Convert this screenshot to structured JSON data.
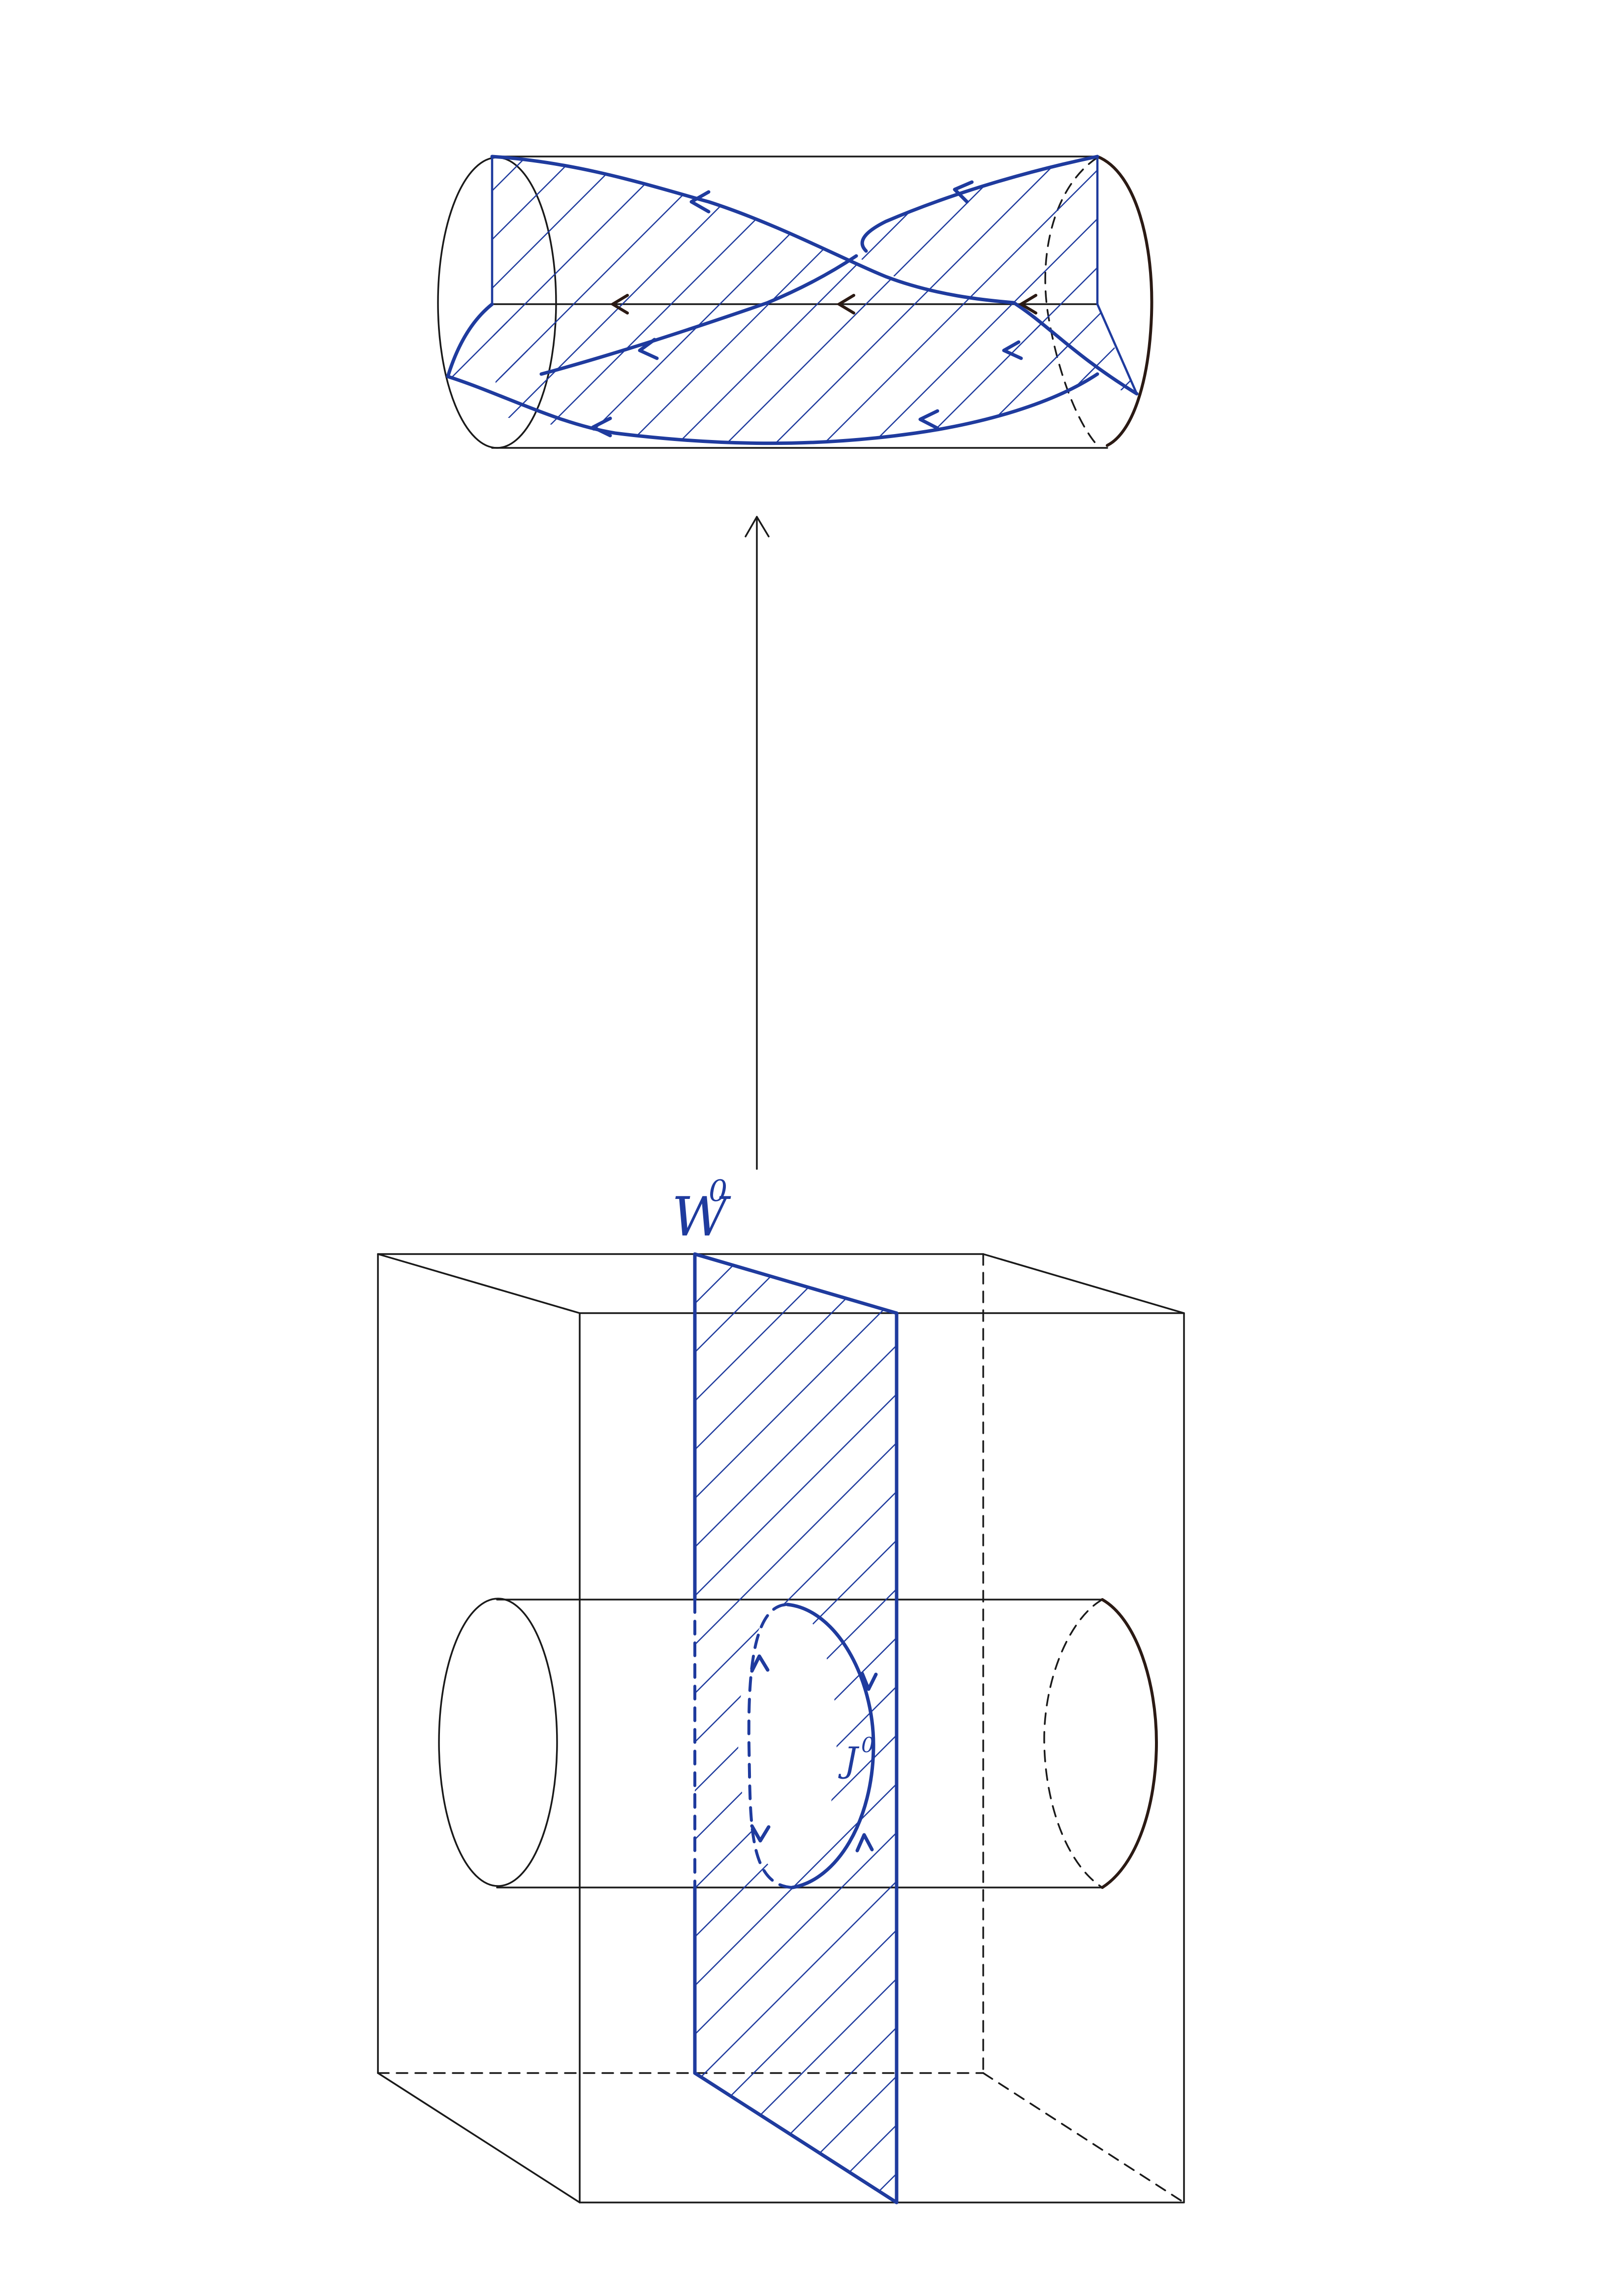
{
  "labels": {
    "surface": "W",
    "surface_index": "0",
    "loop": "J",
    "loop_index": "0"
  },
  "colors": {
    "ink": "#1a1a1a",
    "pen_blue": "#1f3b9e",
    "paper": "#ffffff"
  }
}
